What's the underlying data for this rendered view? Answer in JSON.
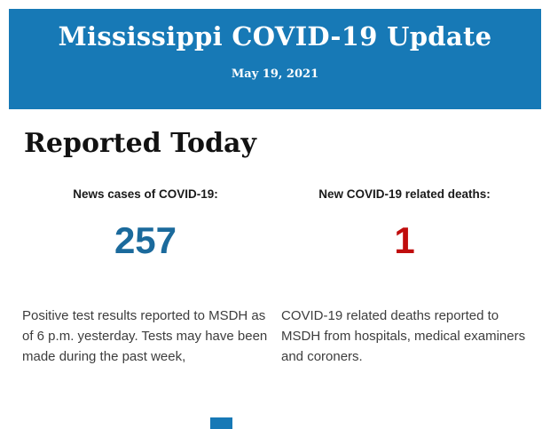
{
  "header": {
    "title": "Mississippi COVID-19 Update",
    "date": "May 19, 2021",
    "background_color": "#1779B6",
    "text_color": "#FFFFFF"
  },
  "section": {
    "heading": "Reported Today"
  },
  "stats": [
    {
      "label": "News cases of COVID-19:",
      "value": "257",
      "value_color": "#1B6A9C",
      "description": "Positive test results reported to MSDH as of 6 p.m. yesterday. Tests may have been made during the past week,"
    },
    {
      "label": "New COVID-19 related deaths:",
      "value": "1",
      "value_color": "#C00D0D",
      "description": "COVID-19 related deaths reported to MSDH from hospitals, medical examiners and coroners."
    }
  ],
  "footer": {
    "sliver_color": "#1779B6"
  }
}
